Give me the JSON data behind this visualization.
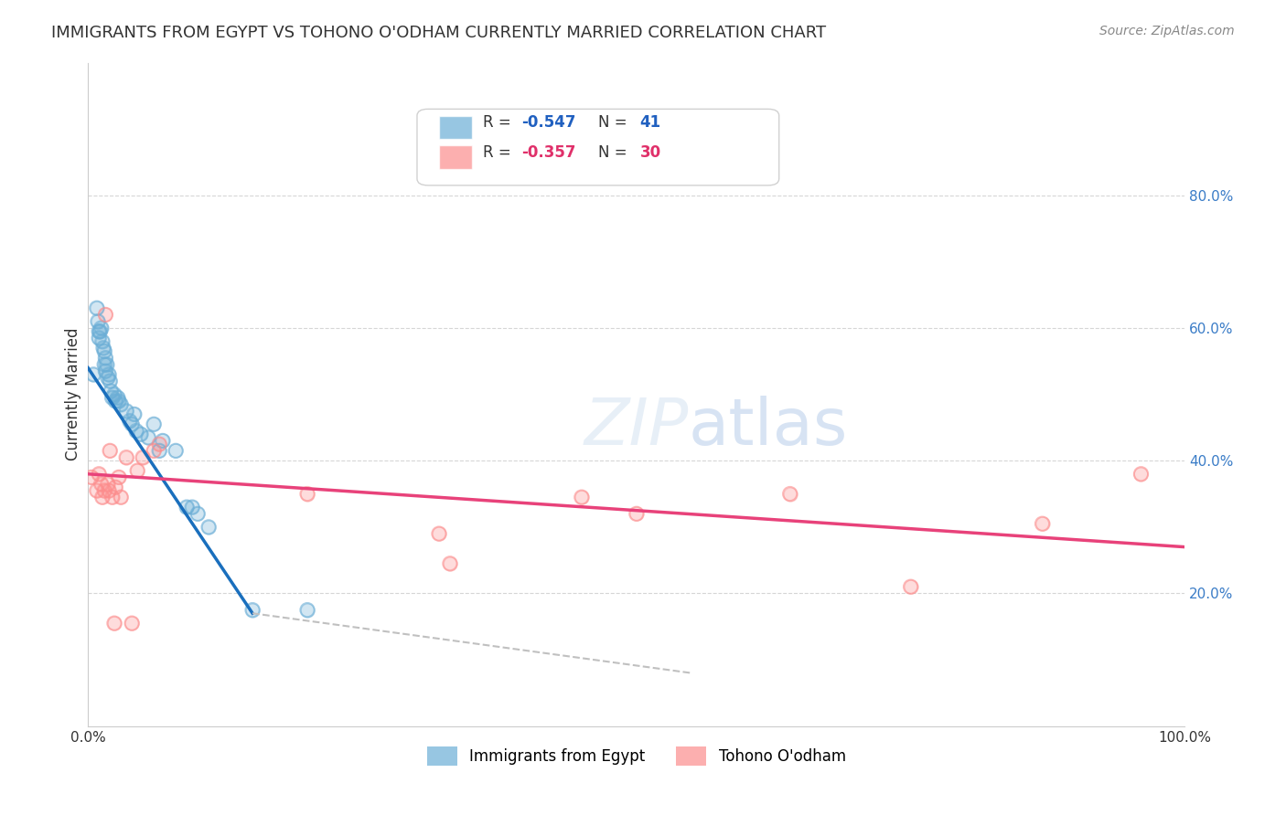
{
  "title": "IMMIGRANTS FROM EGYPT VS TOHONO O'ODHAM CURRENTLY MARRIED CORRELATION CHART",
  "source": "Source: ZipAtlas.com",
  "xlabel": "",
  "ylabel": "Currently Married",
  "xlim": [
    0,
    1.0
  ],
  "ylim": [
    0,
    1.0
  ],
  "xticks": [
    0.0,
    0.2,
    0.4,
    0.6,
    0.8,
    1.0
  ],
  "xtick_labels": [
    "0.0%",
    "",
    "",
    "",
    "",
    "100.0%"
  ],
  "ytick_labels_right": [
    "80.0%",
    "60.0%",
    "40.0%",
    "20.0%"
  ],
  "ytick_vals_right": [
    0.8,
    0.6,
    0.4,
    0.2
  ],
  "blue_R": "-0.547",
  "blue_N": "41",
  "pink_R": "-0.357",
  "pink_N": "30",
  "blue_color": "#6baed6",
  "pink_color": "#fc8d8d",
  "trendline_blue": "#1a6fbd",
  "trendline_pink": "#e8427a",
  "trendline_dashed": "#c0c0c0",
  "watermark": "ZIPatlas",
  "legend_label_blue": "Immigrants from Egypt",
  "legend_label_pink": "Tohono O'odham",
  "blue_points": [
    [
      0.005,
      0.53
    ],
    [
      0.008,
      0.63
    ],
    [
      0.009,
      0.61
    ],
    [
      0.01,
      0.595
    ],
    [
      0.01,
      0.585
    ],
    [
      0.011,
      0.595
    ],
    [
      0.012,
      0.6
    ],
    [
      0.013,
      0.58
    ],
    [
      0.014,
      0.57
    ],
    [
      0.015,
      0.565
    ],
    [
      0.015,
      0.545
    ],
    [
      0.016,
      0.555
    ],
    [
      0.016,
      0.535
    ],
    [
      0.017,
      0.545
    ],
    [
      0.018,
      0.525
    ],
    [
      0.019,
      0.53
    ],
    [
      0.02,
      0.52
    ],
    [
      0.021,
      0.505
    ],
    [
      0.022,
      0.495
    ],
    [
      0.024,
      0.5
    ],
    [
      0.025,
      0.49
    ],
    [
      0.027,
      0.495
    ],
    [
      0.028,
      0.49
    ],
    [
      0.03,
      0.485
    ],
    [
      0.035,
      0.475
    ],
    [
      0.038,
      0.46
    ],
    [
      0.04,
      0.455
    ],
    [
      0.042,
      0.47
    ],
    [
      0.044,
      0.445
    ],
    [
      0.048,
      0.44
    ],
    [
      0.055,
      0.435
    ],
    [
      0.06,
      0.455
    ],
    [
      0.065,
      0.415
    ],
    [
      0.068,
      0.43
    ],
    [
      0.08,
      0.415
    ],
    [
      0.09,
      0.33
    ],
    [
      0.095,
      0.33
    ],
    [
      0.1,
      0.32
    ],
    [
      0.11,
      0.3
    ],
    [
      0.15,
      0.175
    ],
    [
      0.2,
      0.175
    ]
  ],
  "pink_points": [
    [
      0.003,
      0.375
    ],
    [
      0.008,
      0.355
    ],
    [
      0.01,
      0.38
    ],
    [
      0.012,
      0.365
    ],
    [
      0.013,
      0.345
    ],
    [
      0.015,
      0.355
    ],
    [
      0.016,
      0.62
    ],
    [
      0.018,
      0.365
    ],
    [
      0.019,
      0.355
    ],
    [
      0.02,
      0.415
    ],
    [
      0.022,
      0.345
    ],
    [
      0.024,
      0.155
    ],
    [
      0.025,
      0.36
    ],
    [
      0.028,
      0.375
    ],
    [
      0.03,
      0.345
    ],
    [
      0.035,
      0.405
    ],
    [
      0.04,
      0.155
    ],
    [
      0.045,
      0.385
    ],
    [
      0.05,
      0.405
    ],
    [
      0.06,
      0.415
    ],
    [
      0.065,
      0.425
    ],
    [
      0.2,
      0.35
    ],
    [
      0.32,
      0.29
    ],
    [
      0.33,
      0.245
    ],
    [
      0.45,
      0.345
    ],
    [
      0.5,
      0.32
    ],
    [
      0.64,
      0.35
    ],
    [
      0.75,
      0.21
    ],
    [
      0.87,
      0.305
    ],
    [
      0.96,
      0.38
    ]
  ],
  "blue_trend_x": [
    0.0,
    0.15
  ],
  "blue_trend_y": [
    0.54,
    0.17
  ],
  "pink_trend_x": [
    0.0,
    1.0
  ],
  "pink_trend_y": [
    0.38,
    0.27
  ],
  "dashed_trend_x": [
    0.15,
    0.55
  ],
  "dashed_trend_y": [
    0.17,
    0.08
  ]
}
